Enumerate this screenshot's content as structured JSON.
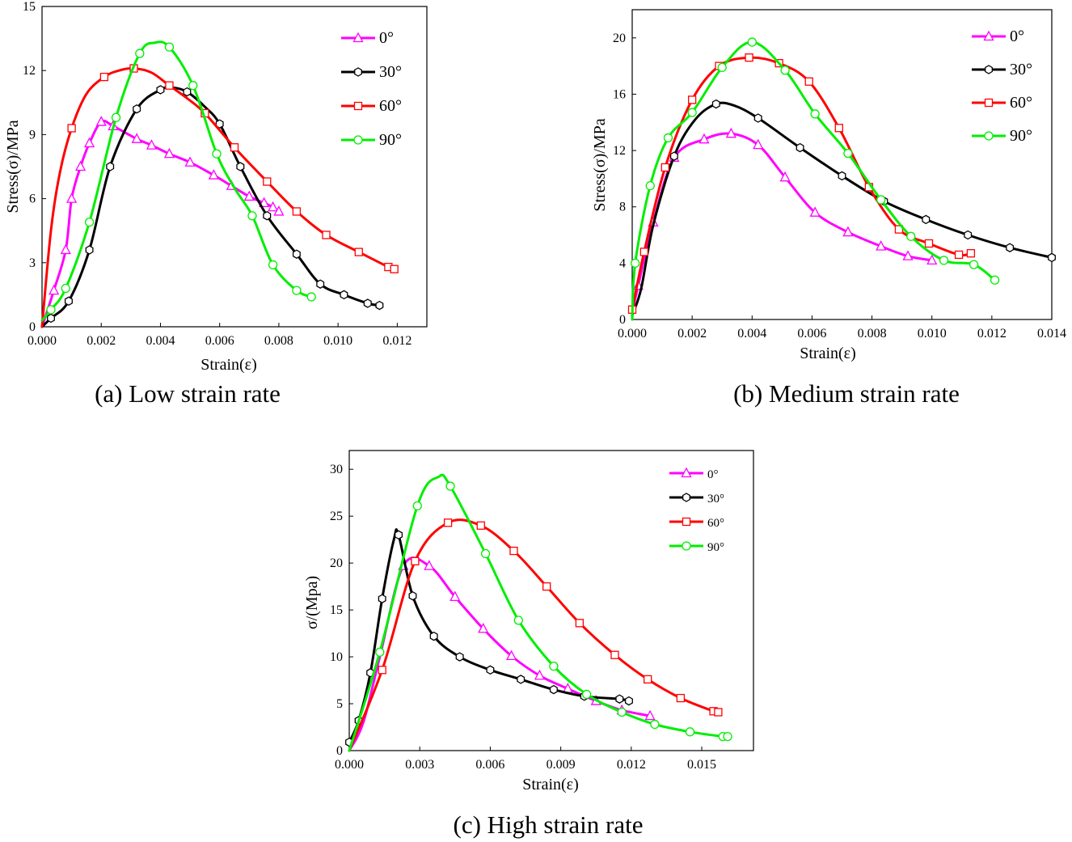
{
  "figure": {
    "captions": [
      "(a) Low strain rate",
      "(b) Medium strain rate",
      "(c) High strain rate"
    ]
  },
  "chart_data": [
    {
      "type": "line",
      "title": "(a) Low strain rate",
      "xlabel": "Strain(ε)",
      "ylabel": "Stress(σ)/MPa",
      "xlim": [
        0,
        0.013
      ],
      "ylim": [
        0,
        15
      ],
      "xticks": [
        0,
        0.002,
        0.004,
        0.006,
        0.008,
        0.01,
        0.012
      ],
      "xtick_labels": [
        "0.000",
        "0.002",
        "0.004",
        "0.006",
        "0.008",
        "0.010",
        "0.012"
      ],
      "yticks": [
        0,
        3,
        6,
        9,
        12,
        15
      ],
      "ytick_labels": [
        "0",
        "3",
        "6",
        "9",
        "12",
        "15"
      ],
      "legend": "top-right",
      "series": [
        {
          "name": "0°",
          "color": "#ff00ff",
          "marker": "triangle",
          "x": [
            0,
            0.0004,
            0.0008,
            0.001,
            0.0013,
            0.0016,
            0.002,
            0.0024,
            0.0032,
            0.0037,
            0.0043,
            0.005,
            0.0058,
            0.0064,
            0.007,
            0.0075,
            0.0078,
            0.008
          ],
          "y": [
            0,
            1.7,
            3.6,
            6.0,
            7.5,
            8.6,
            9.6,
            9.4,
            8.8,
            8.5,
            8.1,
            7.7,
            7.1,
            6.6,
            6.1,
            5.8,
            5.6,
            5.4
          ],
          "marker_x": [
            0.0004,
            0.0008,
            0.001,
            0.0013,
            0.0016,
            0.002,
            0.0024,
            0.0032,
            0.0037,
            0.0043,
            0.005,
            0.0058,
            0.0064,
            0.007,
            0.0075,
            0.0078,
            0.008
          ]
        },
        {
          "name": "30°",
          "color": "#000000",
          "marker": "hexagon",
          "x": [
            0,
            0.0003,
            0.0009,
            0.0016,
            0.0023,
            0.0032,
            0.004,
            0.0044,
            0.0049,
            0.0055,
            0.006,
            0.0067,
            0.0076,
            0.0086,
            0.0094,
            0.0102,
            0.011,
            0.0114
          ],
          "y": [
            0,
            0.4,
            1.2,
            3.6,
            7.5,
            10.2,
            11.1,
            11.2,
            11.0,
            10.3,
            9.5,
            7.5,
            5.2,
            3.4,
            2.0,
            1.5,
            1.1,
            1.0
          ],
          "marker_x": [
            0.0003,
            0.0009,
            0.0016,
            0.0023,
            0.0032,
            0.004,
            0.0049,
            0.006,
            0.0067,
            0.0076,
            0.0086,
            0.0094,
            0.0102,
            0.011,
            0.0114
          ]
        },
        {
          "name": "60°",
          "color": "#ff0000",
          "marker": "square",
          "x": [
            0,
            0.0003,
            0.0006,
            0.001,
            0.0015,
            0.0021,
            0.0026,
            0.0031,
            0.0037,
            0.0043,
            0.0049,
            0.0055,
            0.0065,
            0.0076,
            0.0086,
            0.0096,
            0.0107,
            0.0117,
            0.0119
          ],
          "y": [
            0,
            4.5,
            7.2,
            9.3,
            10.9,
            11.7,
            12.0,
            12.1,
            11.9,
            11.3,
            10.7,
            10.0,
            8.4,
            6.8,
            5.4,
            4.3,
            3.5,
            2.8,
            2.7
          ],
          "marker_x": [
            0.001,
            0.0021,
            0.0031,
            0.0043,
            0.0055,
            0.0065,
            0.0076,
            0.0086,
            0.0096,
            0.0107,
            0.0117,
            0.0119
          ]
        },
        {
          "name": "90°",
          "color": "#00ee00",
          "marker": "circle",
          "x": [
            0,
            0.0003,
            0.0008,
            0.0016,
            0.0025,
            0.0033,
            0.0038,
            0.0043,
            0.0051,
            0.0059,
            0.0065,
            0.0071,
            0.0078,
            0.0086,
            0.0091
          ],
          "y": [
            0.3,
            0.8,
            1.8,
            4.9,
            9.8,
            12.8,
            13.3,
            13.1,
            11.3,
            8.1,
            6.5,
            5.2,
            2.9,
            1.7,
            1.4
          ],
          "marker_x": [
            0.0003,
            0.0008,
            0.0016,
            0.0025,
            0.0033,
            0.0043,
            0.0051,
            0.0059,
            0.0071,
            0.0078,
            0.0086,
            0.0091
          ]
        }
      ]
    },
    {
      "type": "line",
      "title": "(b) Medium strain rate",
      "xlabel": "Strain(ε)",
      "ylabel": "Stress(σ)/MPa",
      "xlim": [
        0,
        0.014
      ],
      "ylim": [
        0,
        22
      ],
      "xticks": [
        0,
        0.002,
        0.004,
        0.006,
        0.008,
        0.01,
        0.012,
        0.014
      ],
      "xtick_labels": [
        "0.000",
        "0.002",
        "0.004",
        "0.006",
        "0.008",
        "0.010",
        "0.012",
        "0.014"
      ],
      "yticks": [
        0,
        4,
        8,
        12,
        16,
        20
      ],
      "ytick_labels": [
        "0",
        "4",
        "8",
        "12",
        "16",
        "20"
      ],
      "legend": "top-right",
      "series": [
        {
          "name": "0°",
          "color": "#ff00ff",
          "marker": "triangle",
          "x": [
            0,
            0.0002,
            0.0007,
            0.0014,
            0.0024,
            0.0033,
            0.0042,
            0.0051,
            0.0061,
            0.0072,
            0.0083,
            0.0092,
            0.01
          ],
          "y": [
            0.5,
            2.4,
            6.9,
            11.5,
            12.8,
            13.2,
            12.4,
            10.1,
            7.6,
            6.2,
            5.2,
            4.5,
            4.2
          ],
          "marker_x": [
            0.0002,
            0.0007,
            0.0014,
            0.0024,
            0.0033,
            0.0042,
            0.0051,
            0.0061,
            0.0072,
            0.0083,
            0.0092,
            0.01
          ]
        },
        {
          "name": "30°",
          "color": "#000000",
          "marker": "hexagon",
          "x": [
            0,
            0.0003,
            0.0007,
            0.0014,
            0.0021,
            0.0028,
            0.0034,
            0.0042,
            0.0056,
            0.007,
            0.0084,
            0.0098,
            0.0112,
            0.0126,
            0.014
          ],
          "y": [
            0.3,
            2.2,
            6.7,
            11.6,
            14.2,
            15.3,
            15.2,
            14.3,
            12.2,
            10.2,
            8.4,
            7.1,
            6.0,
            5.1,
            4.4
          ],
          "marker_x": [
            0.0014,
            0.0028,
            0.0042,
            0.0056,
            0.007,
            0.0084,
            0.0098,
            0.0112,
            0.0126,
            0.014
          ]
        },
        {
          "name": "60°",
          "color": "#ff0000",
          "marker": "square",
          "x": [
            0,
            0.0004,
            0.0011,
            0.002,
            0.0029,
            0.0039,
            0.0049,
            0.0059,
            0.0069,
            0.0079,
            0.0089,
            0.0099,
            0.0109,
            0.0113
          ],
          "y": [
            0.7,
            4.8,
            10.8,
            15.6,
            18.0,
            18.6,
            18.2,
            16.9,
            13.6,
            9.4,
            6.4,
            5.4,
            4.6,
            4.7
          ],
          "marker_x": [
            0,
            0.0004,
            0.0011,
            0.002,
            0.0029,
            0.0039,
            0.0049,
            0.0059,
            0.0069,
            0.0079,
            0.0089,
            0.0099,
            0.0109,
            0.0113
          ]
        },
        {
          "name": "90°",
          "color": "#00ee00",
          "marker": "circle",
          "x": [
            0,
            0.0001,
            0.0006,
            0.0012,
            0.002,
            0.003,
            0.004,
            0.0051,
            0.0061,
            0.0072,
            0.0083,
            0.0093,
            0.0104,
            0.0114,
            0.0121
          ],
          "y": [
            0,
            4.0,
            9.5,
            12.9,
            14.7,
            17.9,
            19.7,
            17.7,
            14.6,
            11.8,
            8.5,
            5.9,
            4.2,
            3.9,
            2.8
          ],
          "marker_x": [
            0.0001,
            0.0006,
            0.0012,
            0.002,
            0.003,
            0.004,
            0.0051,
            0.0061,
            0.0072,
            0.0083,
            0.0093,
            0.0104,
            0.0114,
            0.0121
          ]
        }
      ]
    },
    {
      "type": "line",
      "title": "(c) High strain rate",
      "xlabel": "Strain(ε)",
      "ylabel": "σ/(Mpa)",
      "xlim": [
        0,
        0.0172
      ],
      "ylim": [
        0,
        32
      ],
      "xticks": [
        0,
        0.003,
        0.006,
        0.009,
        0.012,
        0.015
      ],
      "xtick_labels": [
        "0.000",
        "0.003",
        "0.006",
        "0.009",
        "0.012",
        "0.015"
      ],
      "yticks": [
        0,
        5,
        10,
        15,
        20,
        25,
        30
      ],
      "ytick_labels": [
        "0",
        "5",
        "10",
        "15",
        "20",
        "25",
        "30"
      ],
      "legend": "top-right",
      "series": [
        {
          "name": "0°",
          "color": "#ff00ff",
          "marker": "triangle",
          "x": [
            0,
            0.0006,
            0.0013,
            0.0023,
            0.0034,
            0.0045,
            0.0057,
            0.0069,
            0.0081,
            0.0093,
            0.0105,
            0.0116,
            0.0128
          ],
          "y": [
            0,
            3.0,
            10.0,
            19.7,
            19.7,
            16.4,
            13.0,
            10.1,
            8.0,
            6.6,
            5.3,
            4.3,
            3.7
          ],
          "marker_x": [
            0.0023,
            0.0034,
            0.0045,
            0.0057,
            0.0069,
            0.0081,
            0.0093,
            0.0105,
            0.0116,
            0.0128
          ]
        },
        {
          "name": "30°",
          "color": "#000000",
          "marker": "hexagon",
          "x": [
            0,
            0.0004,
            0.0009,
            0.0014,
            0.0019,
            0.0021,
            0.0027,
            0.0036,
            0.0047,
            0.006,
            0.0073,
            0.0087,
            0.01,
            0.0115,
            0.0119
          ],
          "y": [
            0.9,
            3.2,
            8.3,
            16.2,
            22.5,
            23.0,
            16.5,
            12.2,
            10.0,
            8.6,
            7.6,
            6.5,
            5.8,
            5.5,
            5.3
          ],
          "marker_x": [
            0,
            0.0004,
            0.0009,
            0.0014,
            0.0021,
            0.0027,
            0.0036,
            0.0047,
            0.006,
            0.0073,
            0.0087,
            0.01,
            0.0115,
            0.0119
          ]
        },
        {
          "name": "60°",
          "color": "#ff0000",
          "marker": "square",
          "x": [
            0,
            0.0014,
            0.0028,
            0.0042,
            0.0056,
            0.007,
            0.0084,
            0.0098,
            0.0113,
            0.0127,
            0.0141,
            0.0155,
            0.0157
          ],
          "y": [
            0,
            8.6,
            20.2,
            24.3,
            24.0,
            21.3,
            17.5,
            13.6,
            10.2,
            7.6,
            5.6,
            4.2,
            4.1
          ],
          "marker_x": [
            0.0014,
            0.0028,
            0.0042,
            0.0056,
            0.007,
            0.0084,
            0.0098,
            0.0113,
            0.0127,
            0.0141,
            0.0155,
            0.0157
          ]
        },
        {
          "name": "90°",
          "color": "#00ee00",
          "marker": "circle",
          "x": [
            0,
            0.0013,
            0.0029,
            0.0038,
            0.0043,
            0.0058,
            0.0072,
            0.0087,
            0.0101,
            0.0116,
            0.013,
            0.0145,
            0.0159,
            0.0161
          ],
          "y": [
            0,
            10.5,
            26.1,
            29.2,
            28.2,
            21.0,
            13.9,
            9.0,
            6.0,
            4.1,
            2.8,
            2.0,
            1.5,
            1.5
          ],
          "marker_x": [
            0.0013,
            0.0029,
            0.0043,
            0.0058,
            0.0072,
            0.0087,
            0.0101,
            0.0116,
            0.013,
            0.0145,
            0.0159,
            0.0161
          ]
        }
      ]
    }
  ]
}
